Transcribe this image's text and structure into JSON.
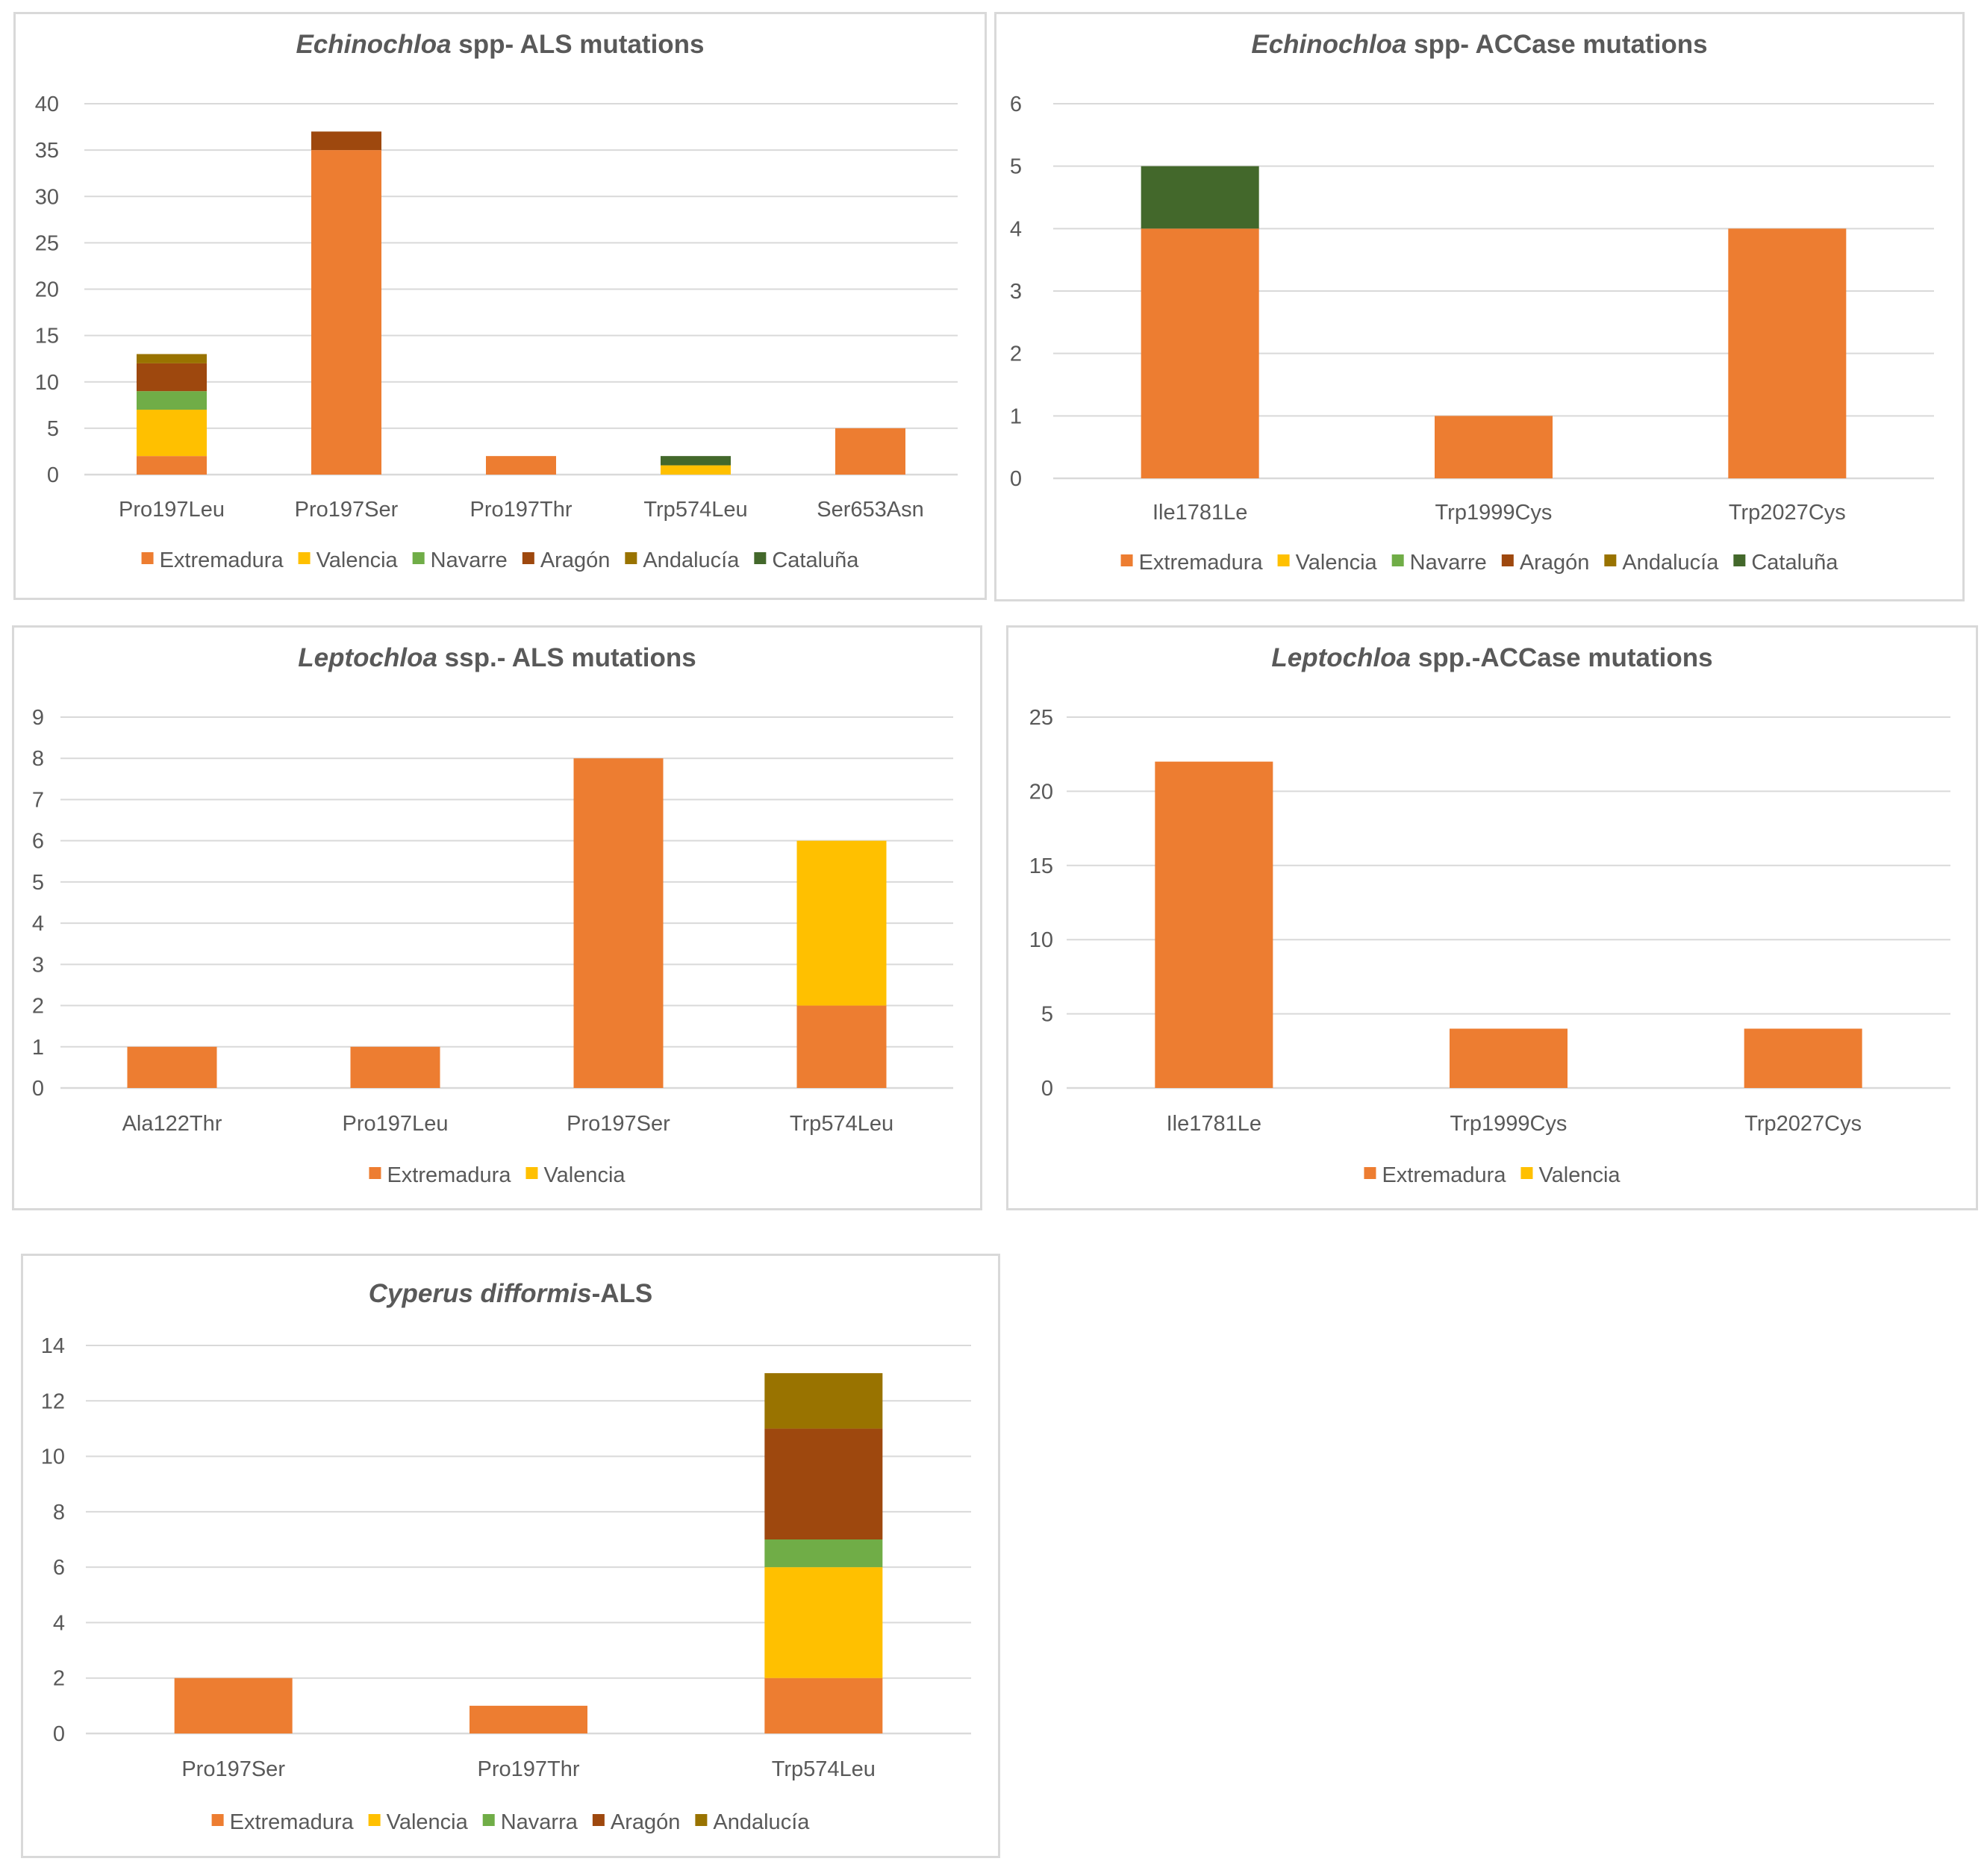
{
  "colors": {
    "Extremadura": "#ED7D31",
    "Valencia": "#FFC000",
    "Navarre": "#70AD47",
    "Navarra": "#70AD47",
    "Aragón": "#9E480E",
    "Andalucía": "#997300",
    "Cataluña": "#43682B"
  },
  "chart_data": [
    {
      "type": "bar",
      "title_italic": "Echinochloa",
      "title_rest": " spp- ALS mutations",
      "categories": [
        "Pro197Leu",
        "Pro197Ser",
        "Pro197Thr",
        "Trp574Leu",
        "Ser653Asn"
      ],
      "series": [
        {
          "name": "Extremadura",
          "values": [
            2,
            35,
            2,
            0,
            5
          ]
        },
        {
          "name": "Valencia",
          "values": [
            5,
            0,
            0,
            1,
            0
          ]
        },
        {
          "name": "Navarre",
          "values": [
            2,
            0,
            0,
            0,
            0
          ]
        },
        {
          "name": "Aragón",
          "values": [
            3,
            2,
            0,
            0,
            0
          ]
        },
        {
          "name": "Andalucía",
          "values": [
            1,
            0,
            0,
            0,
            0
          ]
        },
        {
          "name": "Cataluña",
          "values": [
            0,
            0,
            0,
            1,
            0
          ]
        }
      ],
      "ylim": [
        0,
        40
      ],
      "yticks": [
        "0",
        "5",
        "10",
        "15",
        "20",
        "25",
        "30",
        "35",
        "40"
      ],
      "legend": "bottom"
    },
    {
      "type": "bar",
      "title_italic": "Echinochloa",
      "title_rest": " spp- ACCase mutations",
      "categories": [
        "Ile1781Le",
        "Trp1999Cys",
        "Trp2027Cys"
      ],
      "series": [
        {
          "name": "Extremadura",
          "values": [
            4,
            1,
            4
          ]
        },
        {
          "name": "Valencia",
          "values": [
            0,
            0,
            0
          ]
        },
        {
          "name": "Navarre",
          "values": [
            0,
            0,
            0
          ]
        },
        {
          "name": "Aragón",
          "values": [
            0,
            0,
            0
          ]
        },
        {
          "name": "Andalucía",
          "values": [
            0,
            0,
            0
          ]
        },
        {
          "name": "Cataluña",
          "values": [
            1,
            0,
            0
          ]
        }
      ],
      "ylim": [
        0,
        6
      ],
      "yticks": [
        "0",
        "1",
        "2",
        "3",
        "4",
        "5",
        "6"
      ],
      "legend": "bottom"
    },
    {
      "type": "bar",
      "title_italic": "Leptochloa",
      "title_rest": " ssp.- ALS mutations",
      "categories": [
        "Ala122Thr",
        "Pro197Leu",
        "Pro197Ser",
        "Trp574Leu"
      ],
      "series": [
        {
          "name": "Extremadura",
          "values": [
            1,
            1,
            8,
            2
          ]
        },
        {
          "name": "Valencia",
          "values": [
            0,
            0,
            0,
            4
          ]
        }
      ],
      "ylim": [
        0,
        9
      ],
      "yticks": [
        "0",
        "1",
        "2",
        "3",
        "4",
        "5",
        "6",
        "7",
        "8",
        "9"
      ],
      "legend": "bottom"
    },
    {
      "type": "bar",
      "title_italic": "Leptochloa",
      "title_rest": " spp.-ACCase mutations",
      "categories": [
        "Ile1781Le",
        "Trp1999Cys",
        "Trp2027Cys"
      ],
      "series": [
        {
          "name": "Extremadura",
          "values": [
            22,
            4,
            4
          ]
        },
        {
          "name": "Valencia",
          "values": [
            0,
            0,
            0
          ]
        }
      ],
      "ylim": [
        0,
        25
      ],
      "yticks": [
        "0",
        "5",
        "10",
        "15",
        "20",
        "25"
      ],
      "legend": "bottom"
    },
    {
      "type": "bar",
      "title_italic": "Cyperus difformis",
      "title_rest": "-ALS",
      "categories": [
        "Pro197Ser",
        "Pro197Thr",
        "Trp574Leu"
      ],
      "series": [
        {
          "name": "Extremadura",
          "values": [
            2,
            1,
            2
          ]
        },
        {
          "name": "Valencia",
          "values": [
            0,
            0,
            4
          ]
        },
        {
          "name": "Navarra",
          "values": [
            0,
            0,
            1
          ]
        },
        {
          "name": "Aragón",
          "values": [
            0,
            0,
            4
          ]
        },
        {
          "name": "Andalucía",
          "values": [
            0,
            0,
            2
          ]
        }
      ],
      "ylim": [
        0,
        14
      ],
      "yticks": [
        "0",
        "2",
        "4",
        "6",
        "8",
        "10",
        "12",
        "14"
      ],
      "legend": "bottom"
    }
  ]
}
